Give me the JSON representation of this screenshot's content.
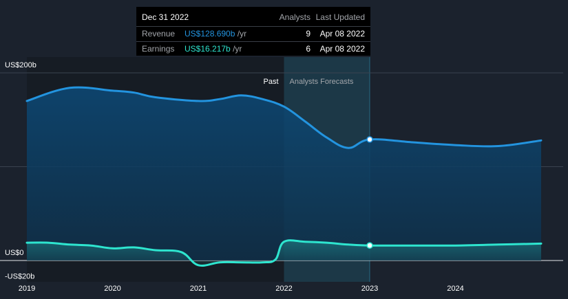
{
  "tooltip": {
    "date": "Dec 31 2022",
    "analysts_header": "Analysts",
    "updated_header": "Last Updated",
    "rows": [
      {
        "label": "Revenue",
        "value": "US$128.690b",
        "unit": "/yr",
        "analysts": "9",
        "updated": "Apr 08 2022"
      },
      {
        "label": "Earnings",
        "value": "US$16.217b",
        "unit": "/yr",
        "analysts": "6",
        "updated": "Apr 08 2022"
      }
    ]
  },
  "colors": {
    "background": "#1b222d",
    "revenue": "#2394df",
    "earnings": "#2ee5cf",
    "past_region": "#161c24",
    "forecast_region": "#1e4a5c"
  },
  "chart_data": {
    "type": "area",
    "y_labels": [
      "US$200b",
      "US$0",
      "-US$20b"
    ],
    "ylim": [
      -20,
      200
    ],
    "x_ticks": [
      "2019",
      "2020",
      "2021",
      "2022",
      "2023",
      "2024"
    ],
    "x_tick_values": [
      2019,
      2020,
      2021,
      2022,
      2023,
      2024
    ],
    "xlim": [
      2019,
      2025.4
    ],
    "past_label": "Past",
    "forecast_label": "Analysts Forecasts",
    "past_start": 2019,
    "forecast_start": 2022,
    "highlight_x": 2023,
    "series": [
      {
        "name": "Revenue",
        "x": [
          2019.0,
          2019.5,
          2020.0,
          2020.25,
          2020.5,
          2021.0,
          2021.25,
          2021.5,
          2021.75,
          2022.0,
          2022.25,
          2022.5,
          2022.75,
          2023.0,
          2023.5,
          2024.0,
          2024.5,
          2025.0
        ],
        "values": [
          170,
          184,
          181,
          179,
          174,
          170,
          172,
          176,
          172,
          164,
          148,
          131,
          120,
          129,
          126,
          123,
          122,
          128
        ],
        "highlight_value": 129
      },
      {
        "name": "Earnings",
        "x": [
          2019.0,
          2019.25,
          2019.5,
          2019.75,
          2020.0,
          2020.25,
          2020.5,
          2020.8,
          2021.0,
          2021.25,
          2021.5,
          2021.75,
          2021.9,
          2022.0,
          2022.25,
          2022.5,
          2022.75,
          2023.0,
          2023.5,
          2024.0,
          2024.5,
          2025.0
        ],
        "values": [
          19,
          19,
          17,
          16,
          13,
          14,
          11,
          9,
          -5,
          -2,
          -2,
          -2,
          1,
          20,
          20,
          19,
          17,
          16,
          16,
          16,
          17,
          18
        ],
        "highlight_value": 16
      }
    ]
  }
}
